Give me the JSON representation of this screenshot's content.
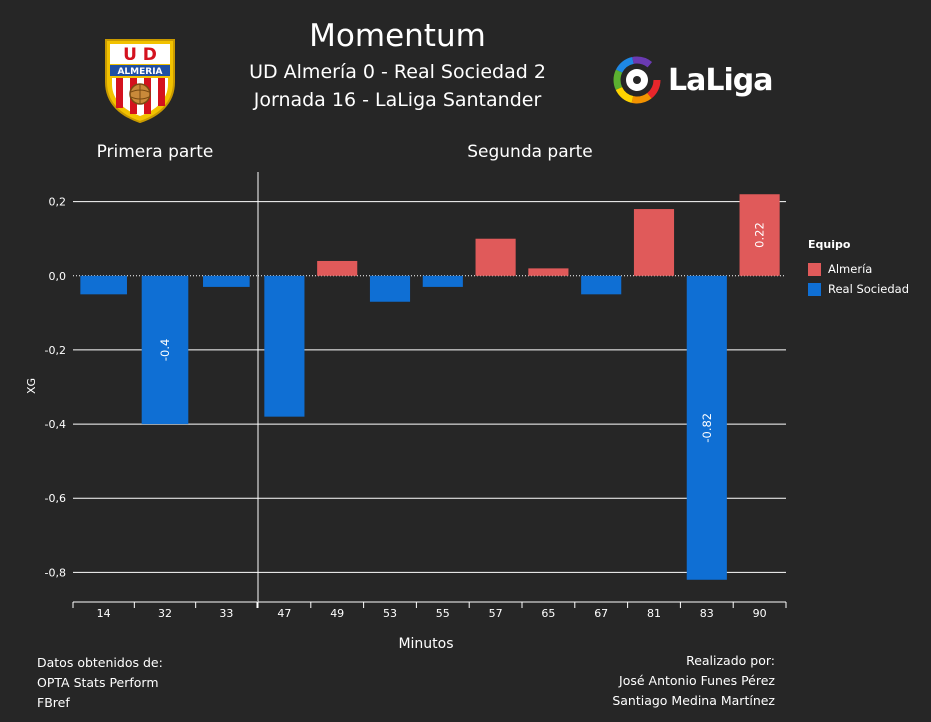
{
  "header": {
    "title": "Momentum",
    "subtitle1": "UD Almería 0 - Real Sociedad 2",
    "subtitle2": "Jornada 16 - LaLiga Santander"
  },
  "logos": {
    "left_badge_text_top": "U D",
    "left_badge_text_band": "ALMERIA",
    "right_logo_text": "LaLiga"
  },
  "legend": {
    "title": "Equipo",
    "items": [
      {
        "label": "Almería",
        "color": "#e05a5a"
      },
      {
        "label": "Real Sociedad",
        "color": "#0f6fd4"
      }
    ]
  },
  "footer": {
    "left": [
      "Datos obtenidos de:",
      "OPTA Stats Perform",
      "FBref"
    ],
    "right": [
      "Realizado por:",
      "José Antonio Funes Pérez",
      "Santiago Medina Martínez"
    ]
  },
  "chart_data": {
    "type": "bar",
    "ylabel": "XG",
    "xlabel": "Minutos",
    "ylim": [
      -0.88,
      0.28
    ],
    "yticks": [
      0.2,
      0.0,
      -0.2,
      -0.4,
      -0.6,
      -0.8
    ],
    "ytick_labels": [
      "0,2",
      "0,0",
      "-0,2",
      "-0,4",
      "-0,6",
      "-0,8"
    ],
    "grid": true,
    "legend_position": "right",
    "panels": [
      {
        "title": "Primera parte",
        "categories": [
          "14",
          "32",
          "33"
        ],
        "values": [
          -0.05,
          -0.4,
          -0.03
        ],
        "teams": [
          "Real Sociedad",
          "Real Sociedad",
          "Real Sociedad"
        ],
        "labels": [
          "",
          "-0.4",
          ""
        ]
      },
      {
        "title": "Segunda parte",
        "categories": [
          "47",
          "49",
          "53",
          "55",
          "57",
          "65",
          "67",
          "81",
          "83",
          "90"
        ],
        "values": [
          -0.38,
          0.04,
          -0.07,
          -0.03,
          0.1,
          0.02,
          -0.05,
          0.18,
          -0.82,
          0.22
        ],
        "teams": [
          "Real Sociedad",
          "Almería",
          "Real Sociedad",
          "Real Sociedad",
          "Almería",
          "Almería",
          "Real Sociedad",
          "Almería",
          "Real Sociedad",
          "Almería"
        ],
        "labels": [
          "",
          "",
          "",
          "",
          "",
          "",
          "",
          "",
          "-0.82",
          "0.22"
        ]
      }
    ]
  }
}
